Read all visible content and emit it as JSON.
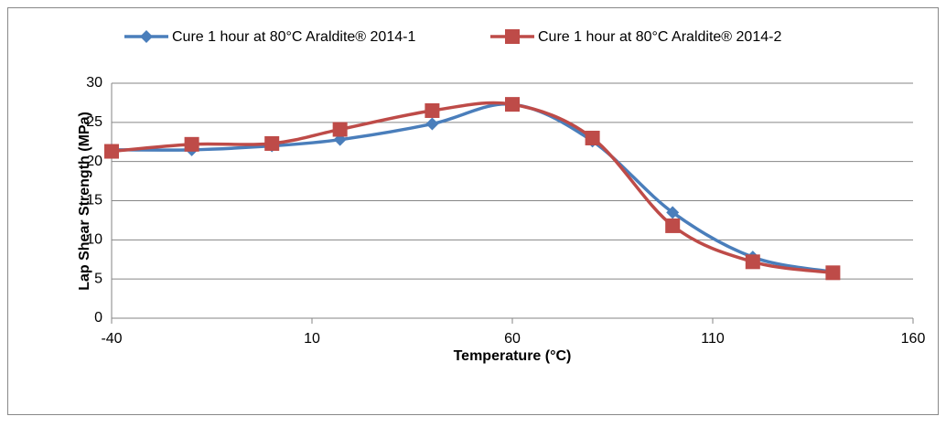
{
  "chart_data": {
    "type": "line",
    "x_label": "Temperature (°C)",
    "y_label": "Lap Shear Strength (MPa)",
    "x": [
      -40,
      -20,
      0,
      17,
      40,
      60,
      80,
      100,
      120,
      140
    ],
    "series": [
      {
        "name": "Cure 1 hour at 80°C Araldite® 2014-1",
        "color": "#4a7ebb",
        "marker": "diamond",
        "values": [
          21.5,
          21.5,
          22,
          22.8,
          24.8,
          27.3,
          22.6,
          13.5,
          7.8,
          5.9
        ]
      },
      {
        "name": "Cure 1 hour at 80°C Araldite® 2014-2",
        "color": "#be4b48",
        "marker": "square",
        "values": [
          21.3,
          22.2,
          22.3,
          24.1,
          26.5,
          27.3,
          23.0,
          11.8,
          7.2,
          5.8
        ]
      }
    ],
    "xlim": [
      -40,
      160
    ],
    "xticks": [
      -40,
      10,
      60,
      110,
      160
    ],
    "ylim": [
      0,
      30
    ],
    "yticks": [
      0,
      5,
      10,
      15,
      20,
      25,
      30
    ],
    "grid": true,
    "smooth": true,
    "legend": "top"
  }
}
